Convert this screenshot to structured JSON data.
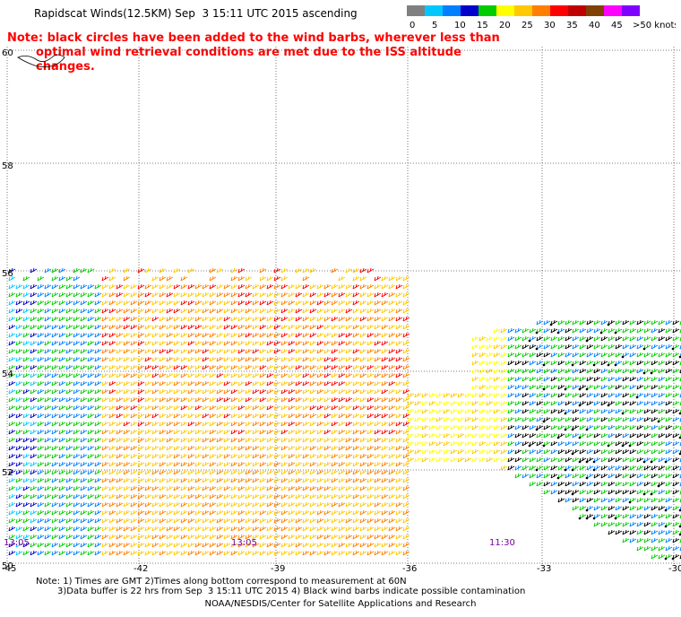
{
  "title": "Rapidscat Winds(12.5KM) Sep  3 15:11 UTC 2015 ascending",
  "note_line1": "Note: black circles have been added to the wind barbs, wherever less than",
  "note_line2": "optimal wind retrieval conditions are met due to the ISS altitude changes.",
  "colorbar": {
    "labels": [
      "0",
      "5",
      "10",
      "15",
      "20",
      "25",
      "30",
      "35",
      "40",
      "45",
      ">50 knots"
    ],
    "colors": [
      "#808080",
      "#00c8ff",
      "#0080ff",
      "#0000cc",
      "#00cc00",
      "#ffff00",
      "#ffc800",
      "#ff8000",
      "#ff0000",
      "#c00000",
      "#804000",
      "#ff00ff",
      "#8000ff"
    ]
  },
  "lat_labels": [
    "60",
    "58",
    "56",
    "54",
    "52",
    "50"
  ],
  "lon_labels": [
    "-45",
    "-42",
    "-39",
    "-36",
    "-33",
    "-30"
  ],
  "pass_times": [
    "13:05",
    "13:05",
    "11:30"
  ],
  "footer_line1": "Note: 1) Times are GMT 2)Times along bottom correspond to measurement at 60N",
  "footer_line2": "3)Data buffer is 22 hrs from Sep  3 15:11 UTC 2015 4) Black wind barbs indicate possible contamination",
  "footer_line3": "NOAA/NESDIS/Center for Satellite Applications and Research"
}
